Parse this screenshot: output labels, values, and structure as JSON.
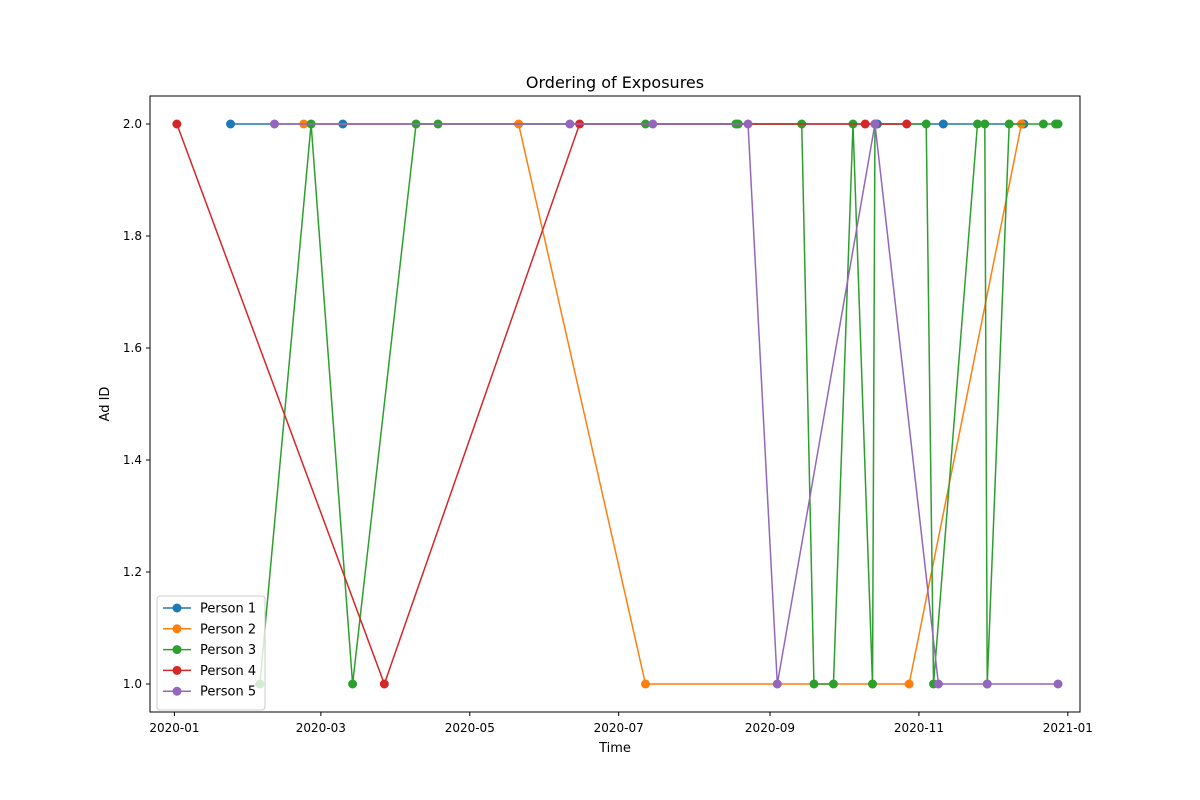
{
  "chart_data": {
    "type": "line",
    "title": "Ordering of Exposures",
    "xlabel": "Time",
    "ylabel": "Ad ID",
    "x_axis_type": "date",
    "xlim": [
      "2019-12-22",
      "2021-01-06"
    ],
    "ylim": [
      0.95,
      2.05
    ],
    "x_ticks": [
      "2020-01-01",
      "2020-03-01",
      "2020-05-01",
      "2020-07-01",
      "2020-09-01",
      "2020-11-01",
      "2021-01-01"
    ],
    "x_tick_labels": [
      "2020-01",
      "2020-03",
      "2020-05",
      "2020-07",
      "2020-09",
      "2020-11",
      "2021-01"
    ],
    "y_ticks": [
      1.0,
      1.2,
      1.4,
      1.6,
      1.8,
      2.0
    ],
    "y_tick_labels": [
      "1.0",
      "1.2",
      "1.4",
      "1.6",
      "1.8",
      "2.0"
    ],
    "grid": false,
    "legend_position": "lower-left",
    "markers": true,
    "series": [
      {
        "name": "Person 1",
        "color": "#1f77b4",
        "x": [
          "2020-01-24",
          "2020-03-10",
          "2020-10-15",
          "2020-11-11",
          "2020-12-14"
        ],
        "y": [
          2,
          2,
          2,
          2,
          2
        ]
      },
      {
        "name": "Person 2",
        "color": "#ff7f0e",
        "x": [
          "2020-02-23",
          "2020-05-21",
          "2020-07-12",
          "2020-10-13",
          "2020-10-28",
          "2020-12-13"
        ],
        "y": [
          2,
          2,
          1,
          1,
          1,
          2
        ]
      },
      {
        "name": "Person 3",
        "color": "#2ca02c",
        "x": [
          "2020-02-05",
          "2020-02-26",
          "2020-03-14",
          "2020-04-09",
          "2020-04-18",
          "2020-07-12",
          "2020-08-18",
          "2020-08-19",
          "2020-09-14",
          "2020-09-19",
          "2020-09-27",
          "2020-10-05",
          "2020-10-13",
          "2020-10-14",
          "2020-11-04",
          "2020-11-07",
          "2020-11-25",
          "2020-11-28",
          "2020-11-29",
          "2020-12-08",
          "2020-12-22",
          "2020-12-27",
          "2020-12-28"
        ],
        "y": [
          1,
          2,
          1,
          2,
          2,
          2,
          2,
          2,
          2,
          1,
          1,
          2,
          1,
          2,
          2,
          1,
          2,
          2,
          1,
          2,
          2,
          2,
          2
        ]
      },
      {
        "name": "Person 4",
        "color": "#d62728",
        "x": [
          "2020-01-02",
          "2020-03-27",
          "2020-06-15",
          "2020-10-10",
          "2020-10-27"
        ],
        "y": [
          2,
          1,
          2,
          2,
          2
        ]
      },
      {
        "name": "Person 5",
        "color": "#9467bd",
        "x": [
          "2020-02-11",
          "2020-06-11",
          "2020-07-15",
          "2020-08-23",
          "2020-09-04",
          "2020-10-14",
          "2020-11-09",
          "2020-11-29",
          "2020-12-28"
        ],
        "y": [
          2,
          2,
          2,
          2,
          1,
          2,
          1,
          1,
          1
        ]
      }
    ]
  }
}
